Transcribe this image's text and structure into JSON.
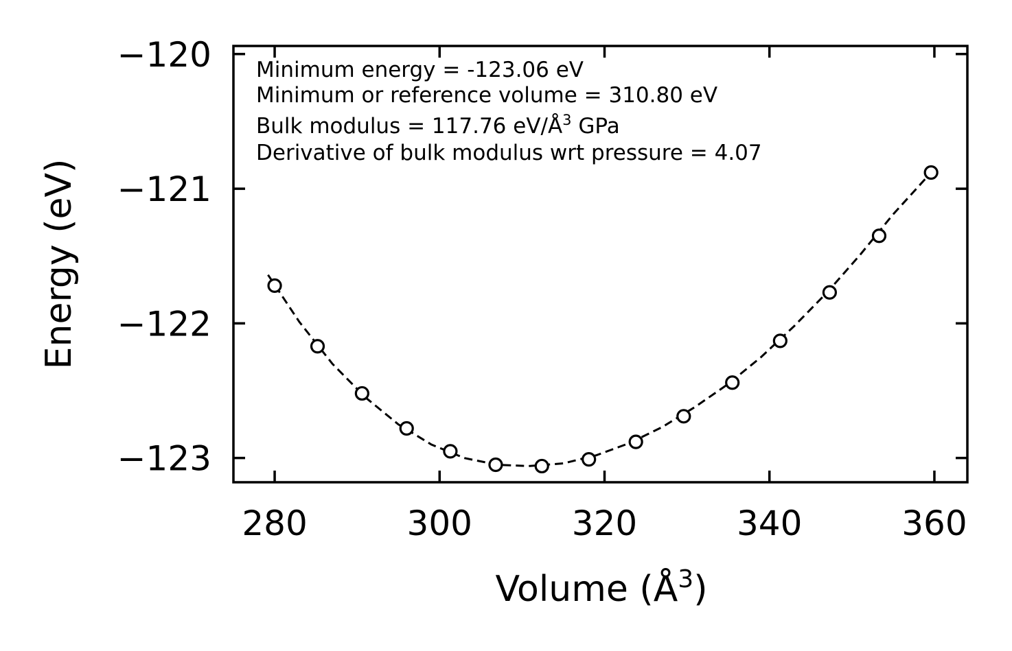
{
  "chart_data": {
    "type": "scatter",
    "title": "",
    "xlabel": "Volume (Å",
    "xlabel_sup": "3",
    "xlabel_close": ")",
    "ylabel": "Energy (eV)",
    "xlim": [
      275,
      364
    ],
    "ylim": [
      -123.18,
      -119.94
    ],
    "xticks": [
      280,
      300,
      320,
      340,
      360
    ],
    "xtick_labels": [
      "280",
      "300",
      "320",
      "340",
      "360"
    ],
    "yticks": [
      -120,
      -121,
      -122,
      -123
    ],
    "ytick_labels": [
      "−120",
      "−121",
      "−122",
      "−123"
    ],
    "grid": false,
    "legend": "none",
    "series": [
      {
        "name": "data",
        "style": "open-circle",
        "x": [
          280.0,
          285.2,
          290.6,
          296.0,
          301.3,
          306.8,
          312.4,
          318.1,
          323.8,
          329.6,
          335.5,
          341.3,
          347.3,
          353.3,
          359.6
        ],
        "y": [
          -121.72,
          -122.17,
          -122.52,
          -122.78,
          -122.95,
          -123.05,
          -123.06,
          -123.01,
          -122.88,
          -122.69,
          -122.44,
          -122.13,
          -121.77,
          -121.35,
          -120.88
        ]
      },
      {
        "name": "fit",
        "style": "dashed-line",
        "x": [
          279.2,
          283.0,
          287.0,
          291.0,
          295.0,
          299.0,
          303.0,
          307.0,
          310.8,
          315.0,
          319.0,
          323.0,
          327.0,
          331.0,
          335.0,
          339.0,
          343.0,
          347.0,
          351.0,
          355.0,
          359.6
        ],
        "y": [
          -121.64,
          -121.99,
          -122.3,
          -122.55,
          -122.75,
          -122.9,
          -123.0,
          -123.05,
          -123.06,
          -123.04,
          -122.98,
          -122.89,
          -122.77,
          -122.62,
          -122.45,
          -122.25,
          -122.02,
          -121.77,
          -121.49,
          -121.19,
          -120.88
        ]
      }
    ],
    "annotations": [
      "Minimum energy = -123.06 eV",
      "Minimum or reference volume = 310.80 eV",
      "Derivative of bulk modulus wrt pressure = 4.07"
    ],
    "bulk_annotation": {
      "prefix": "Bulk modulus = 117.76 eV/Å",
      "sup": "3",
      "suffix": " GPa"
    }
  }
}
